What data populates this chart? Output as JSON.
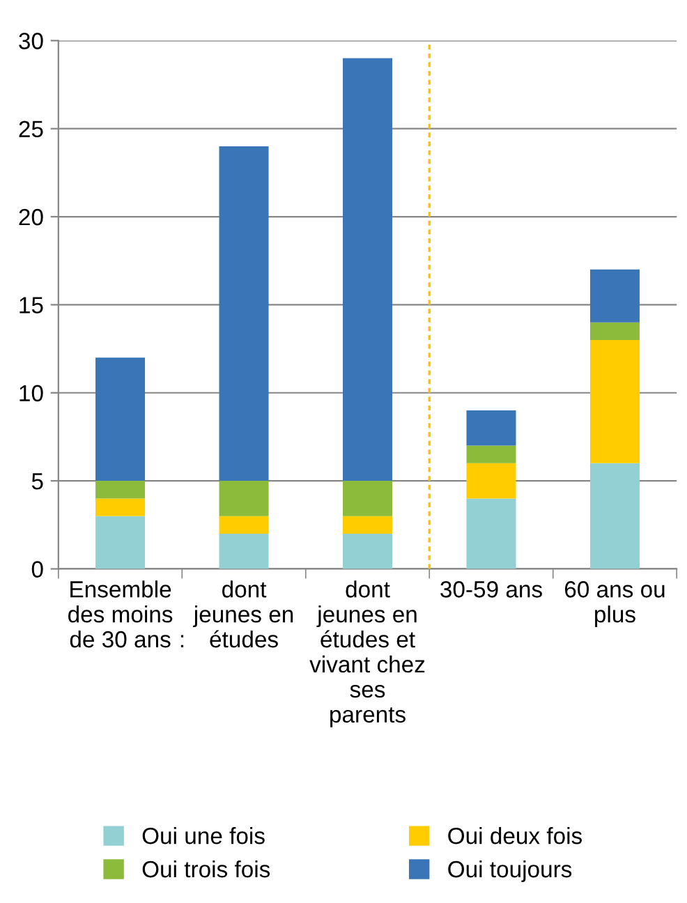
{
  "chart_data": {
    "type": "bar",
    "stacked": true,
    "categories": [
      "Ensemble\ndes moins\nde 30 ans",
      "dont\njeunes en\nétudes",
      "dont\njeunes en\nétudes et\nvivant chez\nses\nparents",
      "30-59 ans",
      "60 ans ou\nplus"
    ],
    "series": [
      {
        "name": "Oui une fois",
        "color": "#92d0d3",
        "values": [
          3,
          2,
          2,
          4,
          6
        ]
      },
      {
        "name": "Oui deux fois",
        "color": "#ffcc00",
        "values": [
          1,
          1,
          1,
          2,
          7
        ]
      },
      {
        "name": "Oui trois fois",
        "color": "#8cbb3c",
        "values": [
          1,
          2,
          2,
          1,
          1
        ]
      },
      {
        "name": "Oui toujours",
        "color": "#3a75b8",
        "values": [
          7,
          19,
          24,
          2,
          3
        ]
      }
    ],
    "ylim": [
      0,
      30
    ],
    "yticks": [
      0,
      5,
      10,
      15,
      20,
      25,
      30
    ],
    "grid": "y",
    "legend": "bottom",
    "annotations": [
      ":"
    ]
  }
}
